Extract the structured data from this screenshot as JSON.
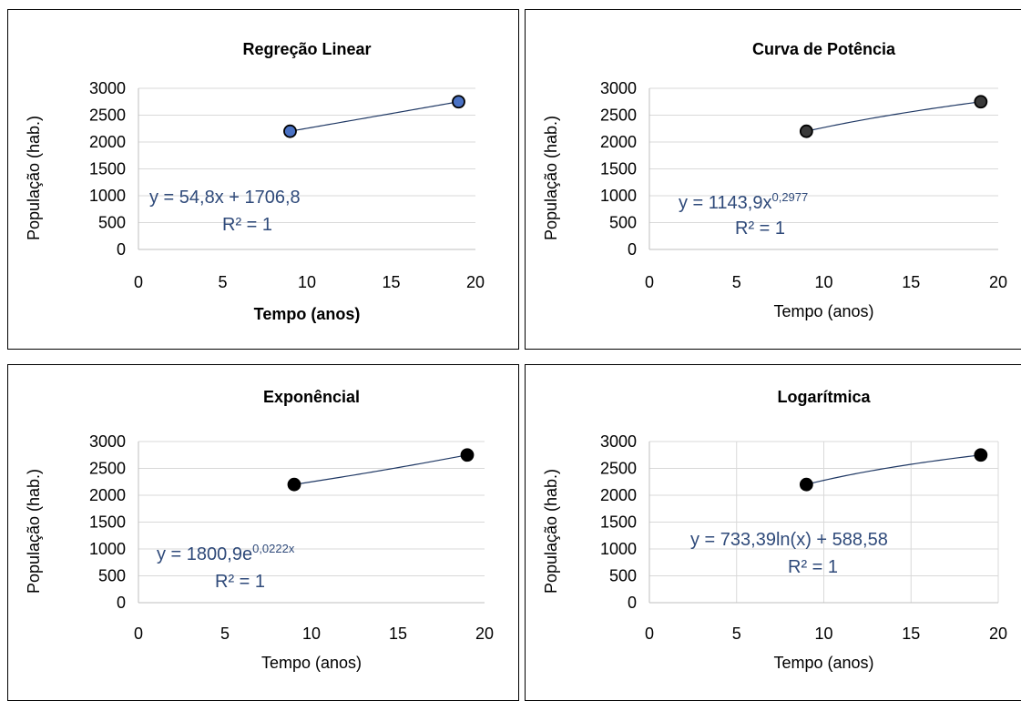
{
  "chart_data": [
    {
      "type": "scatter",
      "title": "Regreção Linear",
      "xlabel": "Tempo (anos)",
      "ylabel": "População (hab.)",
      "xlim": [
        0,
        20
      ],
      "ylim": [
        0,
        3000
      ],
      "xticks": [
        "0",
        "5",
        "10",
        "15",
        "20"
      ],
      "yticks": [
        "0",
        "500",
        "1000",
        "1500",
        "2000",
        "2500",
        "3000"
      ],
      "x": [
        9,
        19
      ],
      "y": [
        2200,
        2750
      ],
      "trendline": "linear",
      "equation": "y = 54,8x + 1706,8",
      "equation_sup": "",
      "r2": "R² = 1",
      "grid": "horizontal",
      "marker_color": "#4a72c4",
      "xlabel_bold": true
    },
    {
      "type": "scatter",
      "title": "Curva de Potência",
      "xlabel": "Tempo (anos)",
      "ylabel": "População (hab.)",
      "xlim": [
        0,
        20
      ],
      "ylim": [
        0,
        3000
      ],
      "xticks": [
        "0",
        "5",
        "10",
        "15",
        "20"
      ],
      "yticks": [
        "0",
        "500",
        "1000",
        "1500",
        "2000",
        "2500",
        "3000"
      ],
      "x": [
        9,
        19
      ],
      "y": [
        2200,
        2750
      ],
      "trendline": "power",
      "equation": "y = 1143,9x",
      "equation_sup": "0,2977",
      "r2": "R² = 1",
      "grid": "horizontal",
      "marker_color": "#3a3a3a",
      "xlabel_bold": false
    },
    {
      "type": "scatter",
      "title": "Exponêncial",
      "xlabel": "Tempo (anos)",
      "ylabel": "População (hab.)",
      "xlim": [
        0,
        20
      ],
      "ylim": [
        0,
        3000
      ],
      "xticks": [
        "0",
        "5",
        "10",
        "15",
        "20"
      ],
      "yticks": [
        "0",
        "500",
        "1000",
        "1500",
        "2000",
        "2500",
        "3000"
      ],
      "x": [
        9,
        19
      ],
      "y": [
        2200,
        2750
      ],
      "trendline": "exponential",
      "equation": "y = 1800,9e",
      "equation_sup": "0,0222x",
      "r2": "R² = 1",
      "grid": "horizontal",
      "marker_color": "#000000",
      "xlabel_bold": false
    },
    {
      "type": "scatter",
      "title": "Logarítmica",
      "xlabel": "Tempo (anos)",
      "ylabel": "População (hab.)",
      "xlim": [
        0,
        20
      ],
      "ylim": [
        0,
        3000
      ],
      "xticks": [
        "0",
        "5",
        "10",
        "15",
        "20"
      ],
      "yticks": [
        "0",
        "500",
        "1000",
        "1500",
        "2000",
        "2500",
        "3000"
      ],
      "x": [
        9,
        19
      ],
      "y": [
        2200,
        2750
      ],
      "trendline": "logarithmic",
      "equation": "y = 733,39ln(x) + 588,58",
      "equation_sup": "",
      "r2": "R² = 1",
      "grid": "both",
      "marker_color": "#000000",
      "xlabel_bold": false
    }
  ]
}
